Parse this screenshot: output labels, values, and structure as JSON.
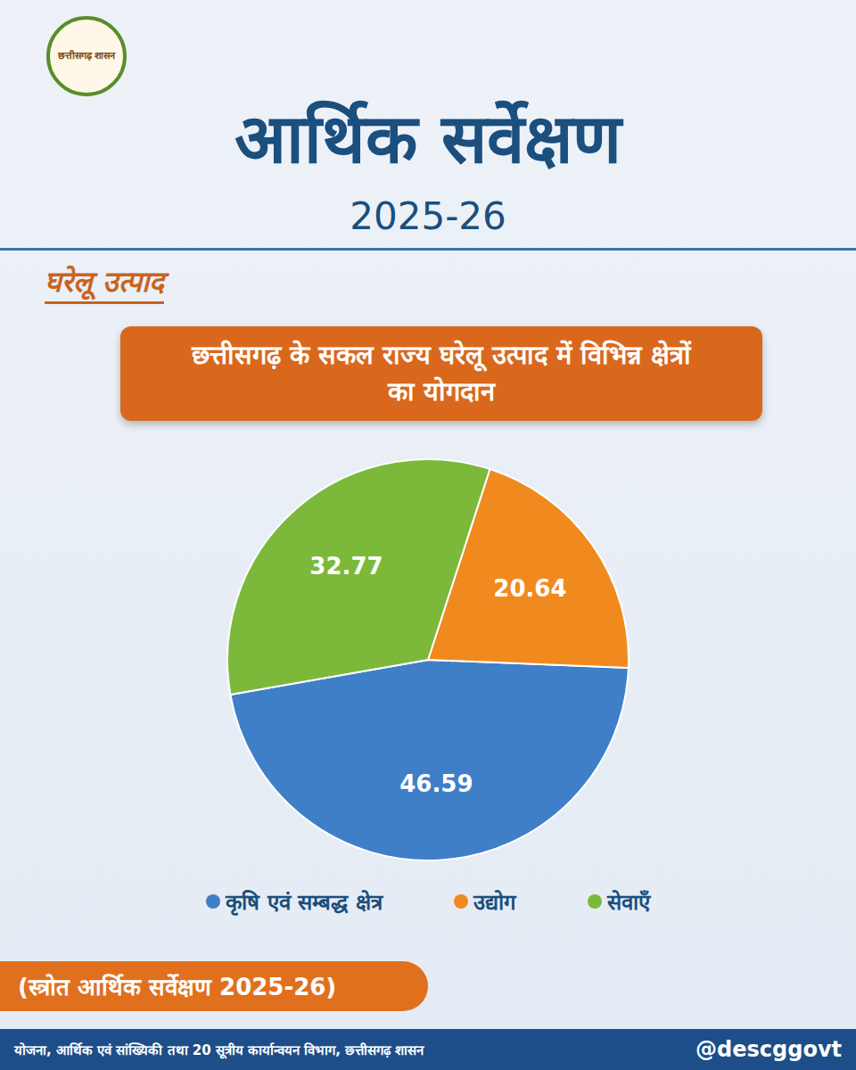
{
  "logo": {
    "text": "छत्तीसगढ़ शासन"
  },
  "header": {
    "title": "आर्थिक सर्वेक्षण",
    "year": "2025-26",
    "section": "घरेलू उत्पाद"
  },
  "chart_data": {
    "type": "pie",
    "title": "छत्तीसगढ़ के सकल राज्य घरेलू उत्पाद में विभिन्न क्षेत्रों का योगदान",
    "categories": [
      "कृषि एवं सम्बद्ध क्षेत्र",
      "उद्योग",
      "सेवाएँ"
    ],
    "values": [
      46.59,
      20.64,
      32.77
    ],
    "colors": [
      "#3f7fc8",
      "#f08a1e",
      "#7cb93a"
    ],
    "data_labels": true,
    "legend": "bottom"
  },
  "source": "(स्त्रोत आर्थिक सर्वेक्षण 2025-26)",
  "footer": {
    "text": "योजना, आर्थिक एवं सांख्यिकी तथा 20 सूत्रीय कार्यान्वयन विभाग, छत्तीसगढ़ शासन",
    "handle": "@descggovt"
  }
}
